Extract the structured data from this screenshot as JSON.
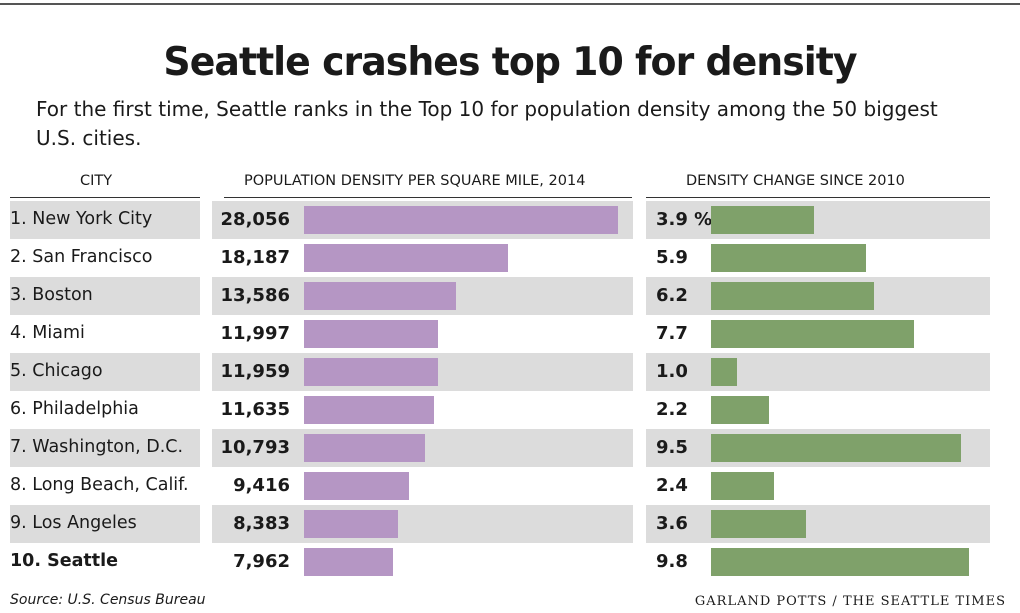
{
  "header": {
    "title": "Seattle crashes top 10 for density",
    "subtitle": "For the first time, Seattle ranks in the Top 10 for population density among the 50 biggest U.S. cities."
  },
  "columns": {
    "city": "CITY",
    "density": "POPULATION DENSITY PER SQUARE MILE, 2014",
    "change": "DENSITY CHANGE SINCE 2010"
  },
  "colors": {
    "density_bar": "#b596c4",
    "change_bar": "#7fa16a",
    "stripe": "#dcdcdc"
  },
  "chart_data": {
    "type": "bar",
    "categories": [
      "1. New York City",
      "2. San Francisco",
      "3. Boston",
      "4. Miami",
      "5. Chicago",
      "6. Philadelphia",
      "7. Washington, D.C.",
      "8. Long Beach, Calif.",
      "9. Los Angeles",
      "10. Seattle"
    ],
    "series": [
      {
        "values": [
          28056,
          18187,
          13586,
          11997,
          11959,
          11635,
          10793,
          9416,
          8383,
          7962
        ],
        "labels": [
          "28,056",
          "18,187",
          "13,586",
          "11,997",
          "11,959",
          "11,635",
          "10,793",
          "9,416",
          "8,383",
          "7,962"
        ]
      },
      {
        "values": [
          3.9,
          5.9,
          6.2,
          7.7,
          1.0,
          2.2,
          9.5,
          2.4,
          3.6,
          9.8
        ],
        "labels": [
          "3.9 %",
          "5.9",
          "6.2",
          "7.7",
          "1.0",
          "2.2",
          "9.5",
          "2.4",
          "3.6",
          "9.8"
        ]
      }
    ],
    "highlight": "10. Seattle"
  },
  "footer": {
    "source": "Source: U.S. Census Bureau",
    "credit": "GARLAND POTTS / THE SEATTLE TIMES"
  }
}
